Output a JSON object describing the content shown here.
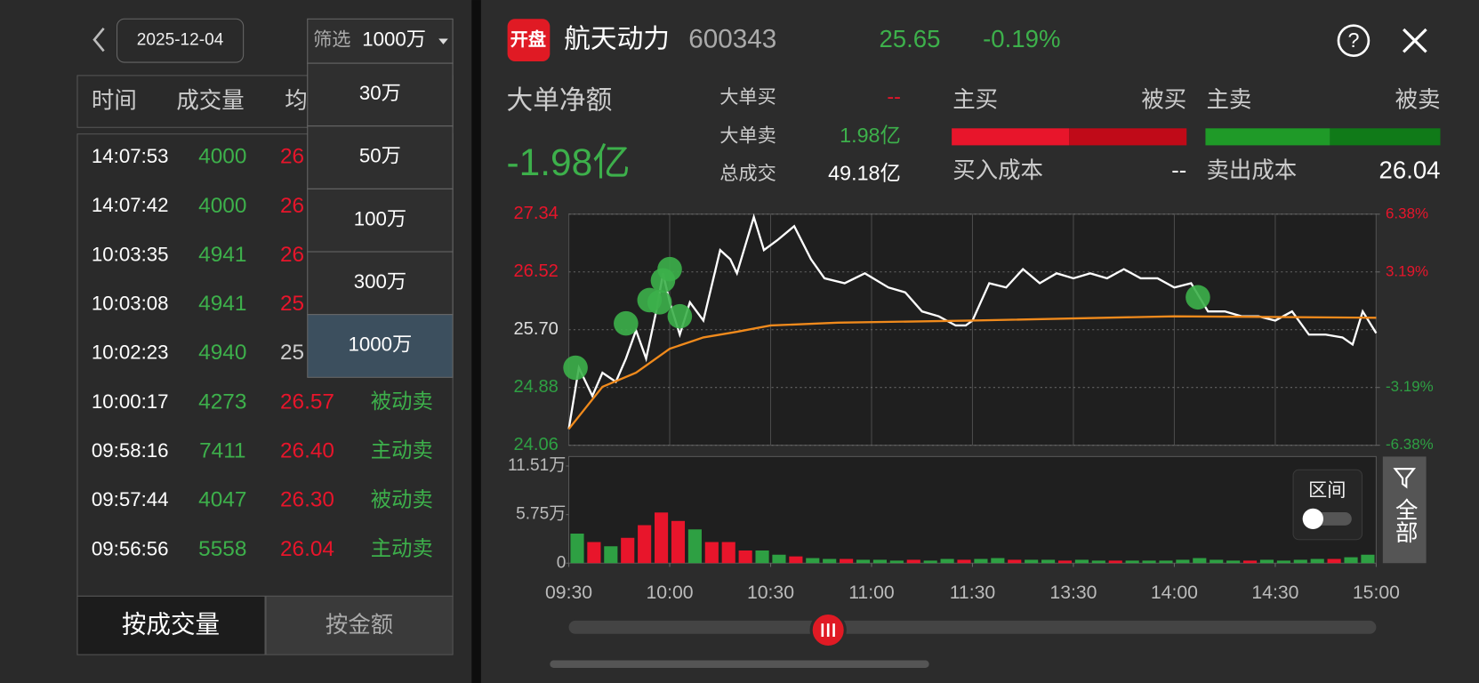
{
  "left_panel": {
    "date": "2025-12-04",
    "columns": [
      "时间",
      "成交量",
      "均"
    ],
    "rows": [
      [
        "14:07:53",
        "4000",
        "26"
      ],
      [
        "14:07:42",
        "4000",
        "26"
      ],
      [
        "10:03:35",
        "4941",
        "26"
      ],
      [
        "10:03:08",
        "4941",
        "25"
      ],
      [
        "10:02:23",
        "4940",
        "25"
      ],
      [
        "10:00:17",
        "4273",
        "26.57",
        "被动卖"
      ],
      [
        "09:58:16",
        "7411",
        "26.40",
        "主动卖"
      ],
      [
        "09:57:44",
        "4047",
        "26.30",
        "被动卖"
      ],
      [
        "09:56:56",
        "5558",
        "26.04",
        "主动卖"
      ]
    ],
    "price_colors": [
      "#e8152b",
      "#e8152b",
      "#e8152b",
      "#e8152b",
      "#cccccc",
      "#e8152b",
      "#e8152b",
      "#e8152b",
      "#e8152b"
    ],
    "filter": {
      "label": "筛选",
      "value": "1000万",
      "options": [
        "30万",
        "50万",
        "100万",
        "300万",
        "1000万"
      ],
      "selected": 4
    },
    "tabs": [
      "按成交量",
      "按金额"
    ],
    "active_tab": 0
  },
  "header": {
    "logo": "开盘",
    "name": "航天动力",
    "code": "600343",
    "price": "25.65",
    "change": "-0.19%"
  },
  "stats": {
    "net_label": "大单净额",
    "net_value": "-1.98亿",
    "big_buy_label": "大单买",
    "big_buy": "--",
    "big_sell_label": "大单卖",
    "big_sell": "1.98亿",
    "total_label": "总成交",
    "total": "49.18亿",
    "active_buy": "主买",
    "passive_buy": "被买",
    "active_sell": "主卖",
    "passive_sell": "被卖",
    "buy_split": [
      50,
      50
    ],
    "sell_split": [
      53,
      47
    ],
    "buy_cost_label": "买入成本",
    "buy_cost": "--",
    "sell_cost_label": "卖出成本",
    "sell_cost": "26.04"
  },
  "controls": {
    "range": "区间",
    "filter": "全部"
  },
  "chart_data": [
    {
      "type": "line",
      "xlim": [
        0,
        240
      ],
      "xticks": [
        0,
        30,
        60,
        90,
        120,
        150,
        180,
        210,
        240
      ],
      "grid": true,
      "ylim": [
        24.06,
        27.34
      ],
      "yticks": [
        24.06,
        24.88,
        {
          "value": 25.7,
          "label": "25.70"
        },
        26.52,
        27.34
      ],
      "y2lim": [
        -6.38,
        6.38
      ],
      "y2ticks": [
        {
          "value": -6.38,
          "label": "-6.38%"
        },
        {
          "value": -3.19,
          "label": "-3.19%"
        },
        {
          "value": 3.19,
          "label": "3.19%"
        },
        {
          "value": 6.38,
          "label": "6.38%"
        }
      ],
      "series": [
        {
          "type": "line",
          "color": "#ffffff",
          "x": [
            0,
            3,
            7,
            10,
            14,
            17,
            20,
            23,
            26,
            28,
            30,
            33,
            36,
            40,
            45,
            48,
            50,
            55,
            58,
            62,
            67,
            72,
            76,
            82,
            88,
            95,
            100,
            105,
            110,
            115,
            118,
            120,
            125,
            130,
            135,
            140,
            145,
            150,
            155,
            160,
            165,
            170,
            175,
            180,
            185,
            190,
            195,
            200,
            205,
            210,
            215,
            220,
            225,
            230,
            233,
            236,
            240
          ],
          "values": [
            24.29,
            25.16,
            24.76,
            25.09,
            24.96,
            25.29,
            25.69,
            25.29,
            25.96,
            26.5,
            26.09,
            25.63,
            26.09,
            25.83,
            26.83,
            26.7,
            26.5,
            27.3,
            26.83,
            26.97,
            27.17,
            26.7,
            26.43,
            26.36,
            26.5,
            26.3,
            26.23,
            25.96,
            25.89,
            25.76,
            25.76,
            25.83,
            26.36,
            26.3,
            26.56,
            26.36,
            26.5,
            26.43,
            26.5,
            26.43,
            26.56,
            26.43,
            26.43,
            26.3,
            26.36,
            25.96,
            25.96,
            25.89,
            25.89,
            25.83,
            25.96,
            25.63,
            25.63,
            25.59,
            25.49,
            25.96,
            25.65
          ]
        },
        {
          "type": "line",
          "color": "#f08a1c",
          "x": [
            0,
            10,
            20,
            30,
            40,
            50,
            60,
            80,
            120,
            180,
            240
          ],
          "values": [
            24.29,
            24.89,
            25.09,
            25.43,
            25.59,
            25.67,
            25.76,
            25.8,
            25.83,
            25.89,
            25.87
          ]
        },
        {
          "type": "scatter",
          "color": "#3cb04a",
          "x": [
            2,
            17,
            24,
            27,
            28,
            30,
            33,
            187
          ],
          "values": [
            25.16,
            25.79,
            26.12,
            26.09,
            26.4,
            26.56,
            25.89,
            26.16
          ]
        }
      ]
    },
    {
      "type": "bar",
      "xlim": [
        0,
        240
      ],
      "xticks": [
        {
          "value": 0,
          "label": "09:30"
        },
        {
          "value": 30,
          "label": "10:00"
        },
        {
          "value": 60,
          "label": "10:30"
        },
        {
          "value": 90,
          "label": "11:00"
        },
        {
          "value": 120,
          "label": "11:30"
        },
        {
          "value": 150,
          "label": "13:30"
        },
        {
          "value": 180,
          "label": "14:00"
        },
        {
          "value": 210,
          "label": "14:30"
        },
        {
          "value": 240,
          "label": "15:00"
        }
      ],
      "ylim": [
        0,
        11.51
      ],
      "yticks": [
        0,
        {
          "value": 5.75,
          "label": "5.75万"
        },
        {
          "value": 11.51,
          "label": "11.51万"
        }
      ],
      "series": [
        {
          "x": [
            0,
            5,
            10,
            15,
            20,
            25,
            30,
            35,
            40,
            45,
            50,
            55,
            60,
            65,
            70,
            75,
            80,
            85,
            90,
            95,
            100,
            105,
            110,
            115,
            120,
            125,
            130,
            135,
            140,
            145,
            150,
            155,
            160,
            165,
            170,
            175,
            180,
            185,
            190,
            195,
            200,
            205,
            210,
            215,
            220,
            225,
            230,
            235
          ],
          "values": [
            3.5,
            2.5,
            2,
            3,
            4.5,
            6,
            5,
            4,
            2.5,
            2.5,
            1.5,
            1.5,
            1,
            0.8,
            0.6,
            0.5,
            0.5,
            0.4,
            0.4,
            0.3,
            0.4,
            0.3,
            0.5,
            0.4,
            0.5,
            0.6,
            0.4,
            0.4,
            0.4,
            0.3,
            0.4,
            0.3,
            0.3,
            0.3,
            0.3,
            0.3,
            0.4,
            0.6,
            0.4,
            0.3,
            0.3,
            0.4,
            0.3,
            0.4,
            0.5,
            0.5,
            0.7,
            1
          ],
          "colors": [
            "#2ea043",
            "#e8152b",
            "#2ea043",
            "#e8152b",
            "#e8152b",
            "#e8152b",
            "#e8152b",
            "#2ea043",
            "#e8152b",
            "#e8152b",
            "#e8152b",
            "#2ea043",
            "#2ea043",
            "#e8152b",
            "#2ea043",
            "#2ea043",
            "#e8152b",
            "#2ea043",
            "#2ea043",
            "#2ea043",
            "#e8152b",
            "#2ea043",
            "#2ea043",
            "#e8152b",
            "#2ea043",
            "#2ea043",
            "#e8152b",
            "#2ea043",
            "#2ea043",
            "#e8152b",
            "#2ea043",
            "#2ea043",
            "#e8152b",
            "#2ea043",
            "#2ea043",
            "#2ea043",
            "#2ea043",
            "#2ea043",
            "#2ea043",
            "#2ea043",
            "#e8152b",
            "#2ea043",
            "#2ea043",
            "#2ea043",
            "#2ea043",
            "#e8152b",
            "#2ea043",
            "#2ea043"
          ]
        }
      ]
    }
  ]
}
